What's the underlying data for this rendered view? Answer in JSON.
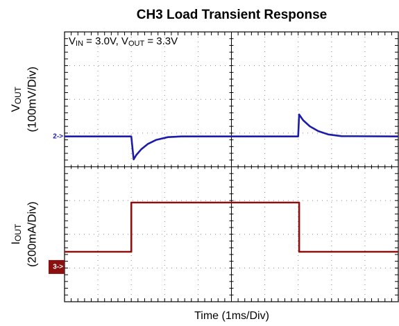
{
  "chart_data": {
    "type": "line",
    "title": "CH3 Load Transient Response",
    "annotation": [
      "V",
      "IN",
      " = 3.0V, V",
      "OUT",
      " = 3.3V"
    ],
    "xlabel": "Time (1ms/Div)",
    "xlim": [
      0,
      10
    ],
    "ylim": [
      0,
      8
    ],
    "x_divisions": 10,
    "y_divisions": 8,
    "grid": true,
    "series": [
      {
        "symbol": "V",
        "subscript": "OUT",
        "scale": "(100mV/Div)",
        "marker": "2->",
        "reference": 4.9,
        "color": "#1c1ca8",
        "x": [
          0,
          2.0,
          2.07,
          2.15,
          2.3,
          2.5,
          2.75,
          3.1,
          3.5,
          7.0,
          7.03,
          7.15,
          7.35,
          7.6,
          7.9,
          8.3,
          10
        ],
        "values": [
          4.9,
          4.9,
          4.22,
          4.35,
          4.52,
          4.68,
          4.8,
          4.88,
          4.9,
          4.9,
          5.55,
          5.38,
          5.2,
          5.06,
          4.96,
          4.91,
          4.9
        ]
      },
      {
        "symbol": "I",
        "subscript": "OUT",
        "scale": "(200mA/Div)",
        "marker": "3->",
        "reference": 1.03,
        "color": "#8b1010",
        "x": [
          0,
          2.0,
          2.0,
          7.03,
          7.03,
          10
        ],
        "values": [
          1.48,
          1.48,
          2.94,
          2.94,
          1.48,
          1.48
        ]
      }
    ]
  }
}
